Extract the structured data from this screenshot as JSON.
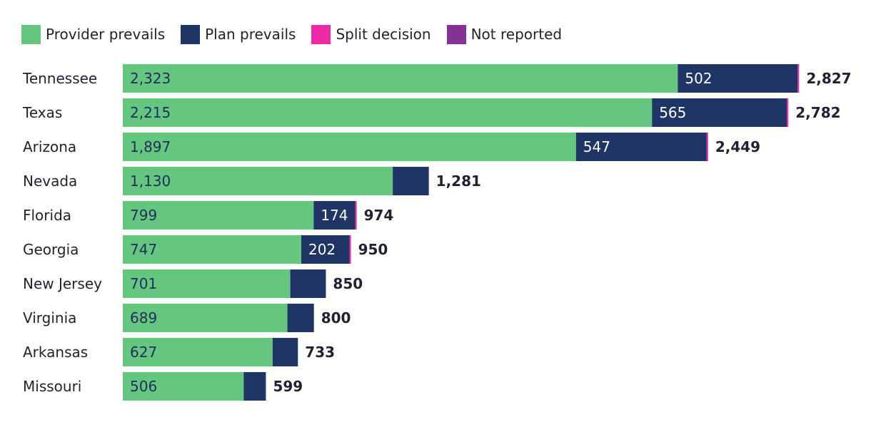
{
  "chart_data": {
    "type": "bar",
    "orientation": "horizontal",
    "stacked": true,
    "categories": [
      "Tennessee",
      "Texas",
      "Arizona",
      "Nevada",
      "Florida",
      "Georgia",
      "New Jersey",
      "Virginia",
      "Arkansas",
      "Missouri"
    ],
    "series": [
      {
        "name": "Provider prevails",
        "color": "#65c680",
        "label_color": "#20305a",
        "values": [
          2323,
          2215,
          1897,
          1130,
          799,
          747,
          701,
          689,
          627,
          506
        ],
        "labels": [
          "2,323",
          "2,215",
          "1,897",
          "1,130",
          "799",
          "747",
          "701",
          "689",
          "627",
          "506"
        ]
      },
      {
        "name": "Plan prevails",
        "color": "#1f3566",
        "label_color": "#ffffff",
        "values": [
          502,
          565,
          547,
          151,
          174,
          202,
          149,
          111,
          106,
          93
        ],
        "labels": [
          "502",
          "565",
          "547",
          "",
          "174",
          "202",
          "",
          "",
          "",
          ""
        ]
      },
      {
        "name": "Split decision",
        "color": "#ec2aa5",
        "label_color": "#ffffff",
        "values": [
          2,
          2,
          5,
          0,
          1,
          1,
          0,
          0,
          0,
          0
        ],
        "labels": [
          "",
          "",
          "",
          "",
          "",
          "",
          "",
          "",
          "",
          ""
        ]
      },
      {
        "name": "Not reported",
        "color": "#843395",
        "label_color": "#ffffff",
        "values": [
          0,
          0,
          0,
          0,
          0,
          0,
          0,
          0,
          0,
          0
        ],
        "labels": [
          "",
          "",
          "",
          "",
          "",
          "",
          "",
          "",
          "",
          ""
        ]
      }
    ],
    "totals": [
      2827,
      2782,
      2449,
      1281,
      974,
      950,
      850,
      800,
      733,
      599
    ],
    "total_labels": [
      "2,827",
      "2,782",
      "2,449",
      "1,281",
      "974",
      "950",
      "850",
      "800",
      "733",
      "599"
    ],
    "xlim": [
      0,
      2827
    ],
    "legend_position": "top-left",
    "grid": false
  }
}
